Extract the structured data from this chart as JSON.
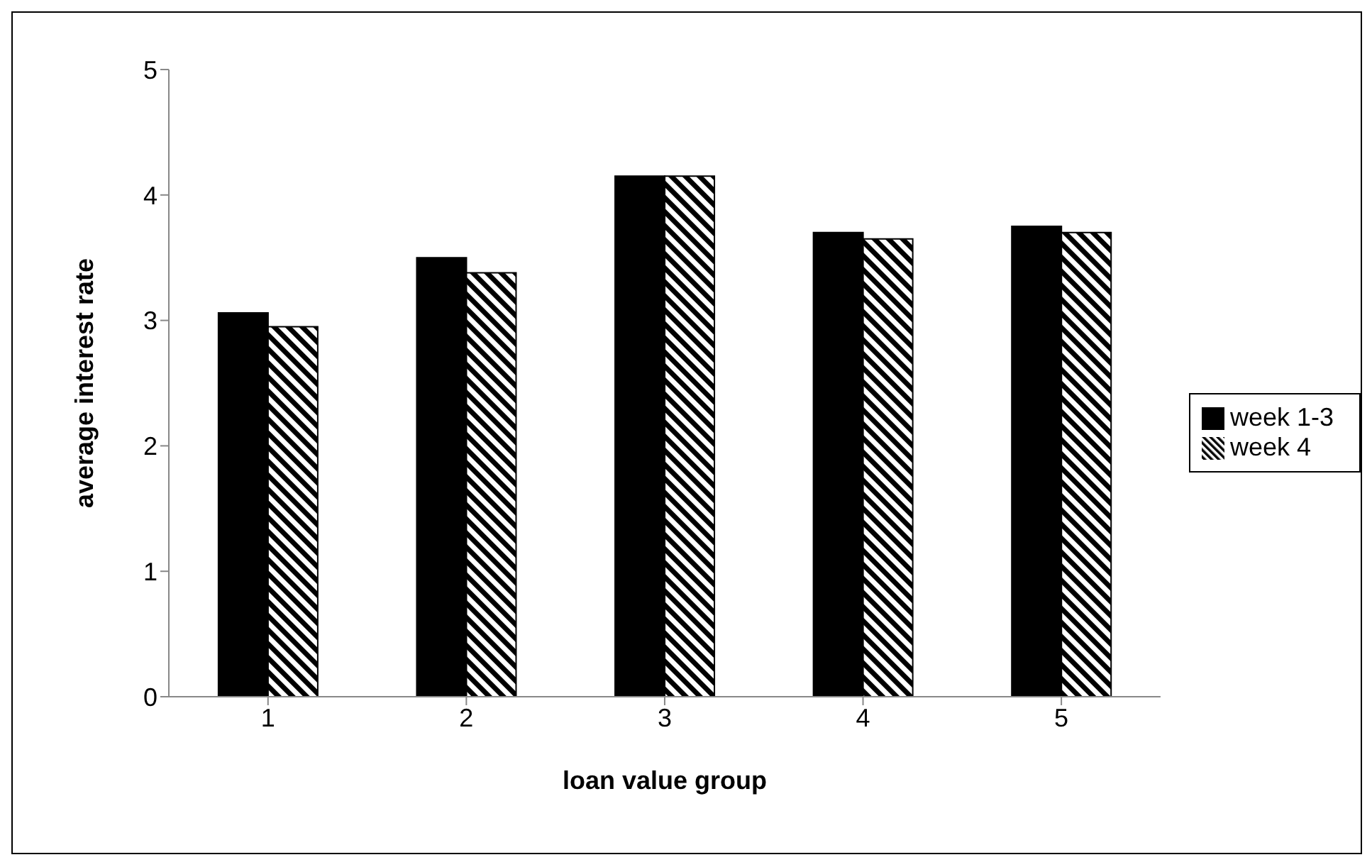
{
  "chart_data": {
    "type": "bar",
    "xlabel": "loan value group",
    "ylabel": "average interest rate",
    "categories": [
      "1",
      "2",
      "3",
      "4",
      "5"
    ],
    "series": [
      {
        "name": "week 1-3",
        "color": "#000000",
        "values": [
          3.06,
          3.5,
          4.15,
          3.7,
          3.75
        ]
      },
      {
        "name": "week 4",
        "color": "#000000",
        "values": [
          2.95,
          3.38,
          4.15,
          3.65,
          3.7
        ]
      }
    ],
    "ylim": [
      0,
      5
    ],
    "yticks": [
      0,
      1,
      2,
      3,
      4,
      5
    ],
    "grid": false,
    "legend": "right"
  }
}
